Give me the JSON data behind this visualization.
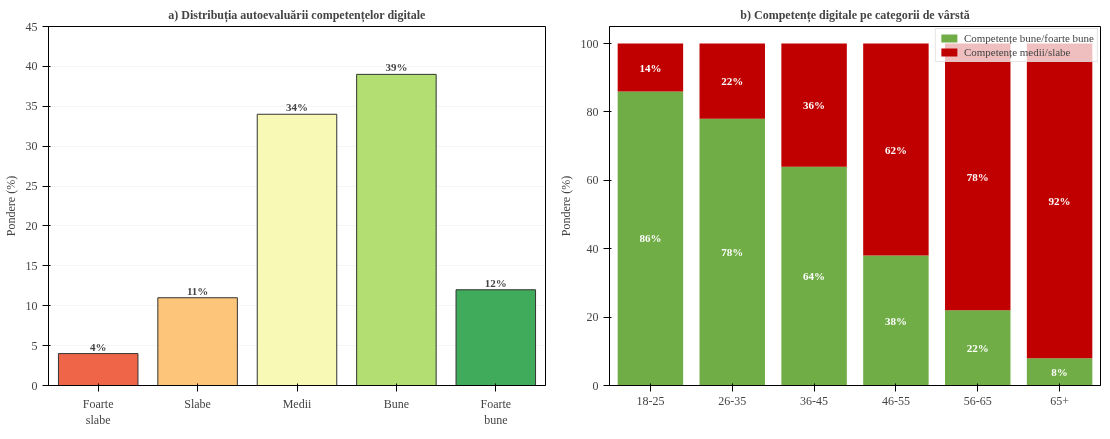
{
  "chart_data": [
    {
      "type": "bar",
      "title": "a) Distribuția autoevaluării competențelor digitale",
      "ylabel": "Pondere (%)",
      "categories": [
        "Foarte slabe",
        "Slabe",
        "Medii",
        "Bune",
        "Foarte bune"
      ],
      "values": [
        4,
        11,
        34,
        39,
        12
      ],
      "colors": [
        "#ee6548",
        "#fdc57a",
        "#f8f9b4",
        "#b3df72",
        "#3fab5b"
      ],
      "value_labels": [
        "4%",
        "11%",
        "34%",
        "39%",
        "12%"
      ],
      "ylim": [
        0,
        45
      ],
      "yticks": [
        0,
        5,
        10,
        15,
        20,
        25,
        30,
        35,
        40,
        45
      ],
      "grid": "y"
    },
    {
      "type": "bar",
      "stacked": true,
      "title": "b) Competențe digitale pe categorii de vârstă",
      "ylabel": "Pondere (%)",
      "categories": [
        "18-25",
        "26-35",
        "36-45",
        "46-55",
        "56-65",
        "65+"
      ],
      "series": [
        {
          "name": "Competențe bune/foarte bune",
          "color": "#70ad47",
          "values": [
            86,
            78,
            64,
            38,
            22,
            8
          ],
          "value_labels": [
            "86%",
            "78%",
            "64%",
            "38%",
            "22%",
            "8%"
          ]
        },
        {
          "name": "Competențe medii/slabe",
          "color": "#c00000",
          "values": [
            14,
            22,
            36,
            62,
            78,
            92
          ],
          "value_labels": [
            "14%",
            "22%",
            "36%",
            "62%",
            "78%",
            "92%"
          ]
        }
      ],
      "ylim": [
        0,
        105
      ],
      "yticks": [
        0,
        20,
        40,
        60,
        80,
        100
      ],
      "legend": "top right"
    }
  ]
}
